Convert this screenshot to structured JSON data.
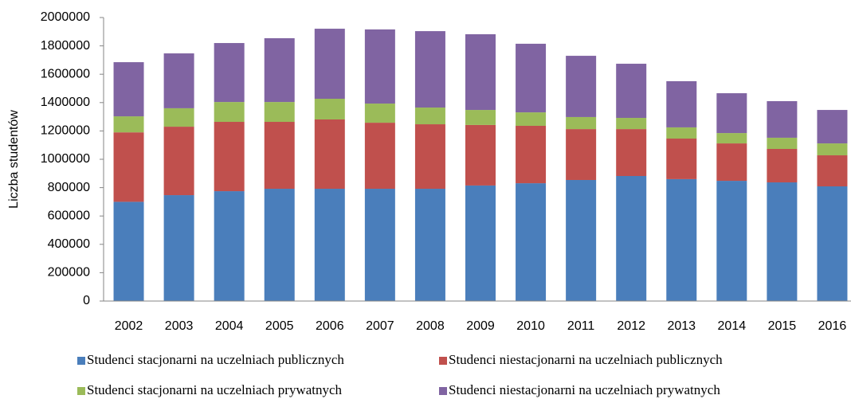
{
  "chart_data": {
    "type": "stacked_bar",
    "y_label": "Liczba studentów",
    "categories": [
      "2002",
      "2003",
      "2004",
      "2005",
      "2006",
      "2007",
      "2008",
      "2009",
      "2010",
      "2011",
      "2012",
      "2013",
      "2014",
      "2015",
      "2016"
    ],
    "series": [
      {
        "name": "Studenci stacjonarni na uczelniach publicznych",
        "color": "#4a7ebb",
        "values": [
          700000,
          747000,
          775000,
          792000,
          792000,
          792000,
          792000,
          815000,
          831000,
          854000,
          882000,
          860000,
          848000,
          837000,
          809000
        ]
      },
      {
        "name": "Studenci niestacjonarni na uczelniach publicznych",
        "color": "#c0504d",
        "values": [
          490000,
          483000,
          489000,
          472000,
          489000,
          466000,
          455000,
          427000,
          405000,
          359000,
          331000,
          286000,
          264000,
          236000,
          219000
        ]
      },
      {
        "name": "Studenci stacjonarni na uczelniach prywatnych",
        "color": "#9bbb59",
        "values": [
          113000,
          130000,
          140000,
          140000,
          146000,
          135000,
          118000,
          106000,
          95000,
          85000,
          79000,
          79000,
          73000,
          79000,
          84000
        ]
      },
      {
        "name": "Studenci niestacjonarni na uczelniach prywatnych",
        "color": "#8064a2",
        "values": [
          382000,
          387000,
          416000,
          450000,
          494000,
          523000,
          539000,
          534000,
          484000,
          432000,
          382000,
          326000,
          281000,
          258000,
          236000
        ]
      }
    ],
    "ylim": [
      0,
      2000000
    ],
    "yticks": [
      0,
      200000,
      400000,
      600000,
      800000,
      1000000,
      1200000,
      1400000,
      1600000,
      1800000,
      2000000
    ],
    "grid": false,
    "legend": "bottom"
  }
}
